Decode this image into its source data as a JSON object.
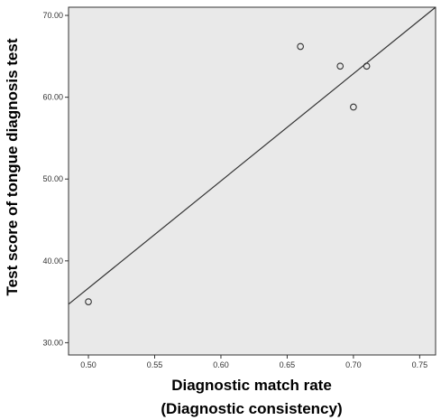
{
  "chart_data": {
    "type": "scatter",
    "title": "",
    "xlabel_line1": "Diagnostic match rate",
    "xlabel_line2": "(Diagnostic consistency)",
    "ylabel": "Test score of tongue diagnosis test",
    "xlim": [
      0.485,
      0.762
    ],
    "ylim": [
      28.5,
      71.0
    ],
    "x_ticks": [
      "0.50",
      "0.55",
      "0.60",
      "0.65",
      "0.70",
      "0.75"
    ],
    "y_ticks": [
      "30.00",
      "40.00",
      "50.00",
      "60.00",
      "70.00"
    ],
    "points": [
      {
        "x": 0.5,
        "y": 35.0
      },
      {
        "x": 0.66,
        "y": 66.2
      },
      {
        "x": 0.69,
        "y": 63.8
      },
      {
        "x": 0.71,
        "y": 63.8
      },
      {
        "x": 0.7,
        "y": 58.8
      }
    ],
    "fit_line": {
      "x": [
        0.485,
        0.762
      ],
      "y": [
        34.7,
        71.0
      ]
    },
    "grid": false,
    "legend": "none",
    "colors": {
      "plot_background": "#e9e9e9",
      "frame": "#333333",
      "marker": "#333333",
      "line": "#333333"
    }
  }
}
